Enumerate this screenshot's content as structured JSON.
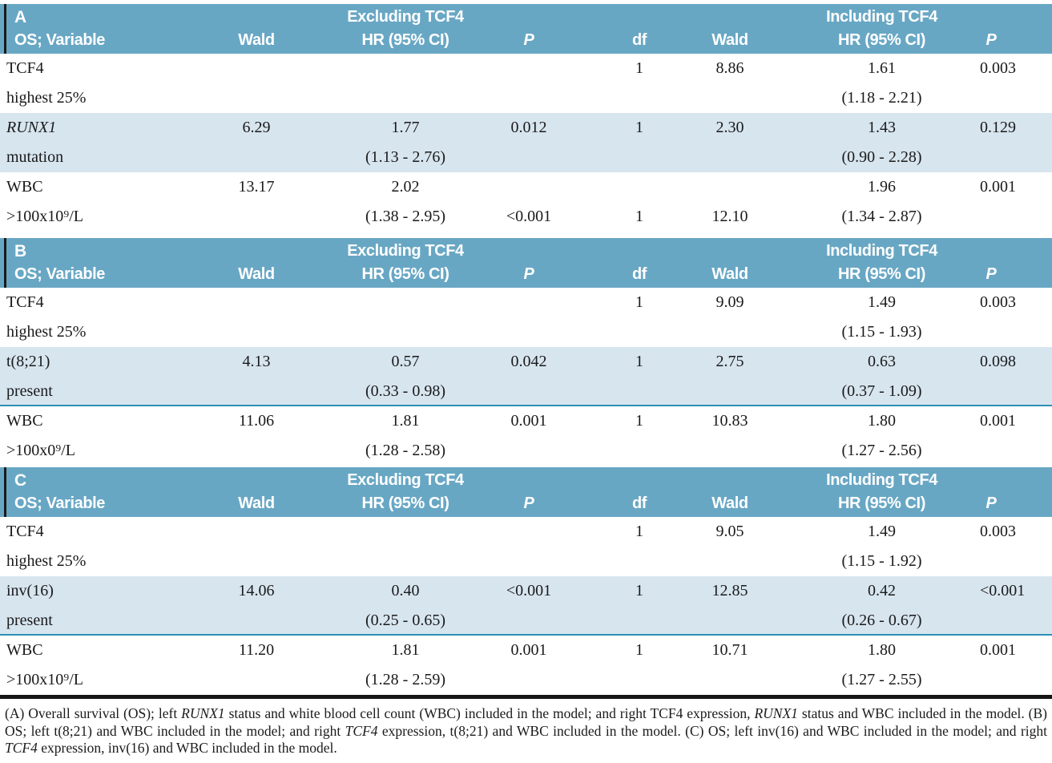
{
  "table": {
    "colors": {
      "header_bg": "#68A7C4",
      "header_text": "#FFFFFF",
      "shaded_row_bg": "#D7E5EF",
      "separator": "#2E8FB4",
      "bottom_border": "#151515"
    },
    "header": {
      "variable": "OS; Variable",
      "wald": "Wald",
      "hr": "HR (95% CI)",
      "p": "P",
      "df": "df",
      "excluding": "Excluding TCF4",
      "including": "Including TCF4"
    },
    "panels": [
      {
        "label": "A",
        "rows": [
          {
            "variable": [
              "TCF4",
              "highest 25%"
            ],
            "variable_italic": false,
            "shaded": false,
            "separator": false,
            "cells": {
              "wald1": [
                "",
                ""
              ],
              "hr1": [
                "",
                ""
              ],
              "p1": [
                "",
                ""
              ],
              "df": [
                "1",
                ""
              ],
              "wald2": [
                "8.86",
                ""
              ],
              "hr2": [
                "1.61",
                "(1.18 - 2.21)"
              ],
              "p2": [
                "0.003",
                ""
              ]
            }
          },
          {
            "variable": [
              "RUNX1",
              "mutation"
            ],
            "variable_italic": true,
            "shaded": true,
            "separator": false,
            "cells": {
              "wald1": [
                "6.29",
                ""
              ],
              "hr1": [
                "1.77",
                "(1.13 - 2.76)"
              ],
              "p1": [
                "0.012",
                ""
              ],
              "df": [
                "1",
                ""
              ],
              "wald2": [
                "2.30",
                ""
              ],
              "hr2": [
                "1.43",
                "(0.90 - 2.28)"
              ],
              "p2": [
                "0.129",
                ""
              ]
            }
          },
          {
            "variable": [
              "WBC",
              ">100x10⁹/L"
            ],
            "variable_italic": false,
            "shaded": false,
            "separator": false,
            "cells": {
              "wald1": [
                "13.17",
                ""
              ],
              "hr1": [
                "2.02",
                "(1.38 - 2.95)"
              ],
              "p1": [
                "",
                "<0.001"
              ],
              "df": [
                "",
                "1"
              ],
              "wald2": [
                "",
                "12.10"
              ],
              "hr2": [
                "1.96",
                "(1.34 - 2.87)"
              ],
              "p2": [
                "0.001",
                ""
              ]
            }
          }
        ]
      },
      {
        "label": "B",
        "rows": [
          {
            "variable": [
              "TCF4",
              "highest 25%"
            ],
            "variable_italic": false,
            "shaded": false,
            "separator": false,
            "cells": {
              "wald1": [
                "",
                ""
              ],
              "hr1": [
                "",
                ""
              ],
              "p1": [
                "",
                ""
              ],
              "df": [
                "1",
                ""
              ],
              "wald2": [
                "9.09",
                ""
              ],
              "hr2": [
                "1.49",
                "(1.15 - 1.93)"
              ],
              "p2": [
                "0.003",
                ""
              ]
            }
          },
          {
            "variable": [
              "t(8;21)",
              "present"
            ],
            "variable_italic": false,
            "shaded": true,
            "separator": true,
            "cells": {
              "wald1": [
                "4.13",
                ""
              ],
              "hr1": [
                "0.57",
                "(0.33 - 0.98)"
              ],
              "p1": [
                "0.042",
                ""
              ],
              "df": [
                "1",
                ""
              ],
              "wald2": [
                "2.75",
                ""
              ],
              "hr2": [
                "0.63",
                "(0.37 - 1.09)"
              ],
              "p2": [
                "0.098",
                ""
              ]
            }
          },
          {
            "variable": [
              "WBC",
              ">100x0⁹/L"
            ],
            "variable_italic": false,
            "shaded": false,
            "separator": false,
            "cells": {
              "wald1": [
                "11.06",
                ""
              ],
              "hr1": [
                "1.81",
                "(1.28 - 2.58)"
              ],
              "p1": [
                "0.001",
                ""
              ],
              "df": [
                "1",
                ""
              ],
              "wald2": [
                "10.83",
                ""
              ],
              "hr2": [
                "1.80",
                "(1.27 - 2.56)"
              ],
              "p2": [
                "0.001",
                ""
              ]
            }
          }
        ]
      },
      {
        "label": "C",
        "rows": [
          {
            "variable": [
              "TCF4",
              "highest 25%"
            ],
            "variable_italic": false,
            "shaded": false,
            "separator": false,
            "cells": {
              "wald1": [
                "",
                ""
              ],
              "hr1": [
                "",
                ""
              ],
              "p1": [
                "",
                ""
              ],
              "df": [
                "1",
                ""
              ],
              "wald2": [
                "9.05",
                ""
              ],
              "hr2": [
                "1.49",
                "(1.15 - 1.92)"
              ],
              "p2": [
                "0.003",
                ""
              ]
            }
          },
          {
            "variable": [
              "inv(16)",
              "present"
            ],
            "variable_italic": false,
            "shaded": true,
            "separator": true,
            "cells": {
              "wald1": [
                "14.06",
                ""
              ],
              "hr1": [
                "0.40",
                "(0.25 - 0.65)"
              ],
              "p1": [
                "<0.001",
                ""
              ],
              "df": [
                "1",
                ""
              ],
              "wald2": [
                "12.85",
                ""
              ],
              "hr2": [
                "0.42",
                "(0.26 - 0.67)"
              ],
              "p2": [
                "<0.001",
                ""
              ]
            }
          },
          {
            "variable": [
              "WBC",
              ">100x10⁹/L"
            ],
            "variable_italic": false,
            "shaded": false,
            "separator": false,
            "cells": {
              "wald1": [
                "11.20",
                ""
              ],
              "hr1": [
                "1.81",
                "(1.28 - 2.59)"
              ],
              "p1": [
                "0.001",
                ""
              ],
              "df": [
                "1",
                ""
              ],
              "wald2": [
                "10.71",
                ""
              ],
              "hr2": [
                "1.80",
                "(1.27 - 2.55)"
              ],
              "p2": [
                "0.001",
                ""
              ]
            }
          }
        ]
      }
    ]
  },
  "footnote": {
    "segments": [
      {
        "text": "(A) Overall survival (OS); left ",
        "italic": false
      },
      {
        "text": "RUNX1",
        "italic": true
      },
      {
        "text": " status and white blood cell count (WBC) included in the model; and right TCF4 expression, ",
        "italic": false
      },
      {
        "text": "RUNX1",
        "italic": true
      },
      {
        "text": " status and WBC included in the model. (B) OS; left t(8;21) and WBC included in the model; and right ",
        "italic": false
      },
      {
        "text": "TCF4",
        "italic": true
      },
      {
        "text": " expression, t(8;21) and WBC included in the model. (C) OS; left inv(16) and WBC included in the model; and right ",
        "italic": false
      },
      {
        "text": "TCF4",
        "italic": true
      },
      {
        "text": " expression, inv(16) and WBC included in the model.",
        "italic": false
      }
    ]
  }
}
